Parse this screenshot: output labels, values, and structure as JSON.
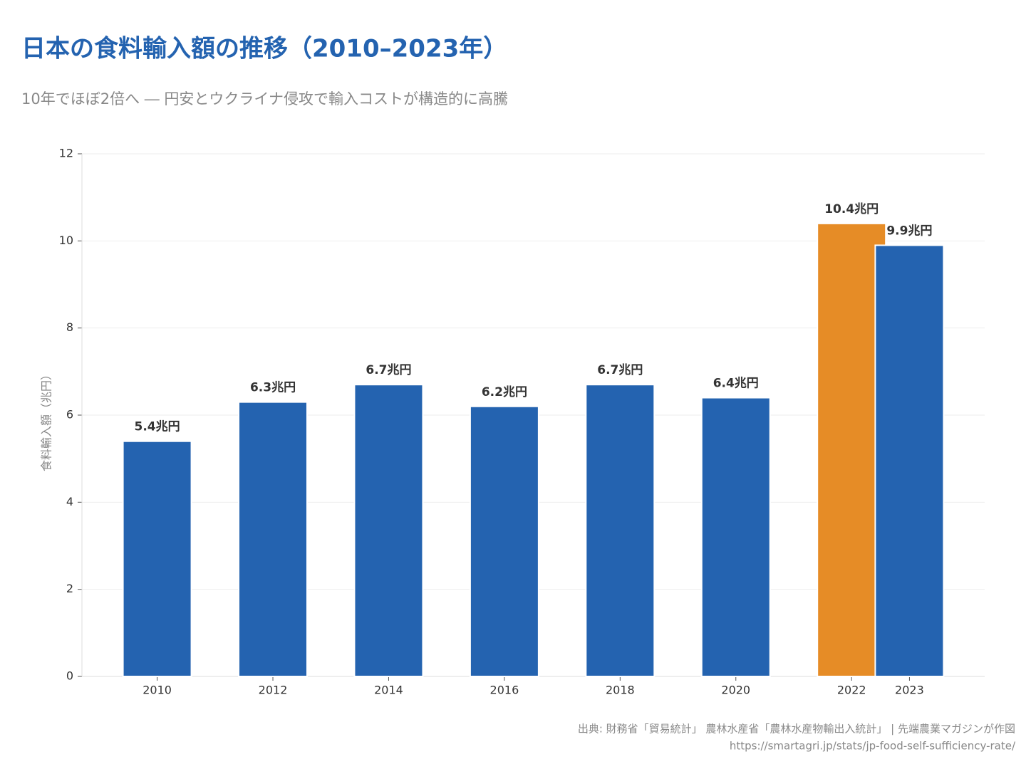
{
  "chart_data": {
    "type": "bar",
    "title": "日本の食料輸入額の推移（2010–2023年）",
    "subtitle": "10年でほぼ2倍へ ― 円安とウクライナ侵攻で輸入コストが構造的に高騰",
    "y_label": "食料輸入額（兆円）",
    "x": [
      2010,
      2012,
      2014,
      2016,
      2018,
      2020,
      2022,
      2023
    ],
    "values": [
      5.4,
      6.3,
      6.7,
      6.2,
      6.7,
      6.4,
      10.4,
      9.9
    ],
    "value_labels": [
      "5.4兆円",
      "6.3兆円",
      "6.7兆円",
      "6.2兆円",
      "6.7兆円",
      "6.4兆円",
      "10.4兆円",
      "9.9兆円"
    ],
    "colors": [
      "#2463b0",
      "#2463b0",
      "#2463b0",
      "#2463b0",
      "#2463b0",
      "#2463b0",
      "#e68c26",
      "#2463b0"
    ],
    "xlim": [
      2008.7,
      2024.3
    ],
    "xticks": [
      2010,
      2012,
      2014,
      2016,
      2018,
      2020,
      2022,
      2023
    ],
    "ylim": [
      0,
      12
    ],
    "yticks": [
      0,
      2,
      4,
      6,
      8,
      10,
      12
    ],
    "grid": true,
    "source": [
      "出典: 財務省「貿易統計」 農林水産省「農林水産物輸出入統計」 | 先端農業マガジンが作図",
      "https://smartagri.jp/stats/jp-food-self-sufficiency-rate/"
    ]
  }
}
